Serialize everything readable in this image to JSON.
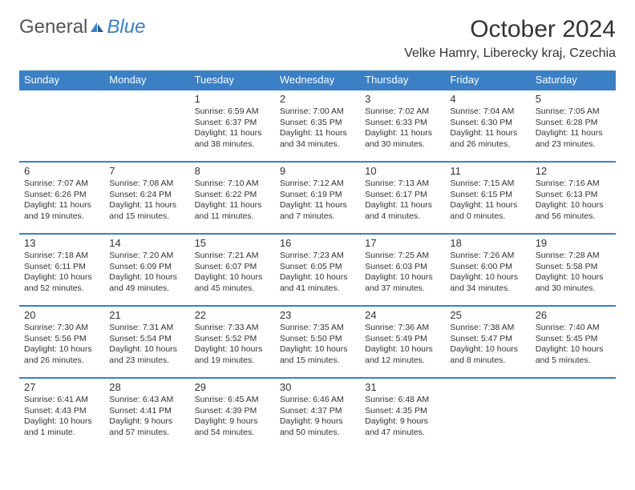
{
  "brand": {
    "part1": "General",
    "part2": "Blue"
  },
  "title": "October 2024",
  "location": "Velke Hamry, Liberecky kraj, Czechia",
  "colors": {
    "accent": "#3b7fc4",
    "text": "#333333",
    "background": "#ffffff",
    "header_text": "#ffffff"
  },
  "typography": {
    "title_fontsize": 30,
    "location_fontsize": 16,
    "header_fontsize": 13,
    "daynum_fontsize": 13,
    "cell_fontsize": 10.5
  },
  "day_labels": [
    "Sunday",
    "Monday",
    "Tuesday",
    "Wednesday",
    "Thursday",
    "Friday",
    "Saturday"
  ],
  "weeks": [
    [
      {
        "day": "",
        "lines": []
      },
      {
        "day": "",
        "lines": []
      },
      {
        "day": "1",
        "lines": [
          "Sunrise: 6:59 AM",
          "Sunset: 6:37 PM",
          "Daylight: 11 hours and 38 minutes."
        ]
      },
      {
        "day": "2",
        "lines": [
          "Sunrise: 7:00 AM",
          "Sunset: 6:35 PM",
          "Daylight: 11 hours and 34 minutes."
        ]
      },
      {
        "day": "3",
        "lines": [
          "Sunrise: 7:02 AM",
          "Sunset: 6:33 PM",
          "Daylight: 11 hours and 30 minutes."
        ]
      },
      {
        "day": "4",
        "lines": [
          "Sunrise: 7:04 AM",
          "Sunset: 6:30 PM",
          "Daylight: 11 hours and 26 minutes."
        ]
      },
      {
        "day": "5",
        "lines": [
          "Sunrise: 7:05 AM",
          "Sunset: 6:28 PM",
          "Daylight: 11 hours and 23 minutes."
        ]
      }
    ],
    [
      {
        "day": "6",
        "lines": [
          "Sunrise: 7:07 AM",
          "Sunset: 6:26 PM",
          "Daylight: 11 hours and 19 minutes."
        ]
      },
      {
        "day": "7",
        "lines": [
          "Sunrise: 7:08 AM",
          "Sunset: 6:24 PM",
          "Daylight: 11 hours and 15 minutes."
        ]
      },
      {
        "day": "8",
        "lines": [
          "Sunrise: 7:10 AM",
          "Sunset: 6:22 PM",
          "Daylight: 11 hours and 11 minutes."
        ]
      },
      {
        "day": "9",
        "lines": [
          "Sunrise: 7:12 AM",
          "Sunset: 6:19 PM",
          "Daylight: 11 hours and 7 minutes."
        ]
      },
      {
        "day": "10",
        "lines": [
          "Sunrise: 7:13 AM",
          "Sunset: 6:17 PM",
          "Daylight: 11 hours and 4 minutes."
        ]
      },
      {
        "day": "11",
        "lines": [
          "Sunrise: 7:15 AM",
          "Sunset: 6:15 PM",
          "Daylight: 11 hours and 0 minutes."
        ]
      },
      {
        "day": "12",
        "lines": [
          "Sunrise: 7:16 AM",
          "Sunset: 6:13 PM",
          "Daylight: 10 hours and 56 minutes."
        ]
      }
    ],
    [
      {
        "day": "13",
        "lines": [
          "Sunrise: 7:18 AM",
          "Sunset: 6:11 PM",
          "Daylight: 10 hours and 52 minutes."
        ]
      },
      {
        "day": "14",
        "lines": [
          "Sunrise: 7:20 AM",
          "Sunset: 6:09 PM",
          "Daylight: 10 hours and 49 minutes."
        ]
      },
      {
        "day": "15",
        "lines": [
          "Sunrise: 7:21 AM",
          "Sunset: 6:07 PM",
          "Daylight: 10 hours and 45 minutes."
        ]
      },
      {
        "day": "16",
        "lines": [
          "Sunrise: 7:23 AM",
          "Sunset: 6:05 PM",
          "Daylight: 10 hours and 41 minutes."
        ]
      },
      {
        "day": "17",
        "lines": [
          "Sunrise: 7:25 AM",
          "Sunset: 6:03 PM",
          "Daylight: 10 hours and 37 minutes."
        ]
      },
      {
        "day": "18",
        "lines": [
          "Sunrise: 7:26 AM",
          "Sunset: 6:00 PM",
          "Daylight: 10 hours and 34 minutes."
        ]
      },
      {
        "day": "19",
        "lines": [
          "Sunrise: 7:28 AM",
          "Sunset: 5:58 PM",
          "Daylight: 10 hours and 30 minutes."
        ]
      }
    ],
    [
      {
        "day": "20",
        "lines": [
          "Sunrise: 7:30 AM",
          "Sunset: 5:56 PM",
          "Daylight: 10 hours and 26 minutes."
        ]
      },
      {
        "day": "21",
        "lines": [
          "Sunrise: 7:31 AM",
          "Sunset: 5:54 PM",
          "Daylight: 10 hours and 23 minutes."
        ]
      },
      {
        "day": "22",
        "lines": [
          "Sunrise: 7:33 AM",
          "Sunset: 5:52 PM",
          "Daylight: 10 hours and 19 minutes."
        ]
      },
      {
        "day": "23",
        "lines": [
          "Sunrise: 7:35 AM",
          "Sunset: 5:50 PM",
          "Daylight: 10 hours and 15 minutes."
        ]
      },
      {
        "day": "24",
        "lines": [
          "Sunrise: 7:36 AM",
          "Sunset: 5:49 PM",
          "Daylight: 10 hours and 12 minutes."
        ]
      },
      {
        "day": "25",
        "lines": [
          "Sunrise: 7:38 AM",
          "Sunset: 5:47 PM",
          "Daylight: 10 hours and 8 minutes."
        ]
      },
      {
        "day": "26",
        "lines": [
          "Sunrise: 7:40 AM",
          "Sunset: 5:45 PM",
          "Daylight: 10 hours and 5 minutes."
        ]
      }
    ],
    [
      {
        "day": "27",
        "lines": [
          "Sunrise: 6:41 AM",
          "Sunset: 4:43 PM",
          "Daylight: 10 hours and 1 minute."
        ]
      },
      {
        "day": "28",
        "lines": [
          "Sunrise: 6:43 AM",
          "Sunset: 4:41 PM",
          "Daylight: 9 hours and 57 minutes."
        ]
      },
      {
        "day": "29",
        "lines": [
          "Sunrise: 6:45 AM",
          "Sunset: 4:39 PM",
          "Daylight: 9 hours and 54 minutes."
        ]
      },
      {
        "day": "30",
        "lines": [
          "Sunrise: 6:46 AM",
          "Sunset: 4:37 PM",
          "Daylight: 9 hours and 50 minutes."
        ]
      },
      {
        "day": "31",
        "lines": [
          "Sunrise: 6:48 AM",
          "Sunset: 4:35 PM",
          "Daylight: 9 hours and 47 minutes."
        ]
      },
      {
        "day": "",
        "lines": []
      },
      {
        "day": "",
        "lines": []
      }
    ]
  ]
}
